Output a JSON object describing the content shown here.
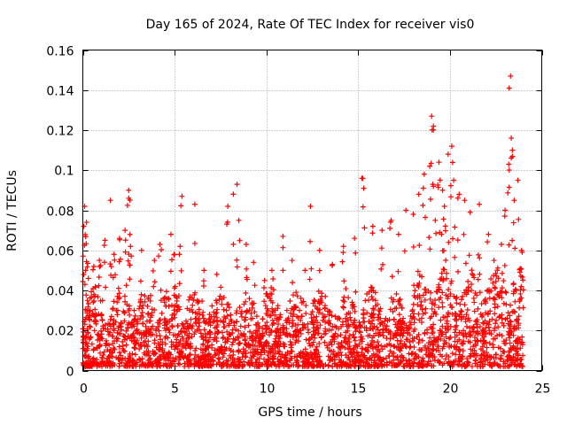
{
  "chart_data": {
    "type": "scatter",
    "title": "Day 165 of 2024, Rate Of TEC Index for receiver vis0",
    "xlabel": "GPS time / hours",
    "ylabel": "ROTI / TECUs",
    "xlim": [
      0,
      25
    ],
    "ylim": [
      0,
      0.16
    ],
    "xticks": [
      "0",
      "5",
      "10",
      "15",
      "20",
      "25"
    ],
    "xtick_values": [
      0,
      5,
      10,
      15,
      20,
      25
    ],
    "yticks": [
      "0",
      "0.02",
      "0.04",
      "0.06",
      "0.08",
      "0.1",
      "0.12",
      "0.14",
      "0.16"
    ],
    "ytick_values": [
      0,
      0.02,
      0.04,
      0.06,
      0.08,
      0.1,
      0.12,
      0.14,
      0.16
    ],
    "grid": true,
    "marker": "+",
    "color": "#ff0000",
    "series": [
      {
        "name": "ROTI",
        "x": [
          0.05,
          0.1,
          0.2,
          0.15,
          0.3,
          0.25,
          0.6,
          0.9,
          1.2,
          1.5,
          1.7,
          2.0,
          2.3,
          2.5,
          2.5,
          2.6,
          3.2,
          3.9,
          4.2,
          4.8,
          5.0,
          5.3,
          5.4,
          6.1,
          6.6,
          7.3,
          7.9,
          8.2,
          8.4,
          8.5,
          8.9,
          9.3,
          9.9,
          10.3,
          10.9,
          11.4,
          12.1,
          12.4,
          12.9,
          13.6,
          14.2,
          14.8,
          15.2,
          15.3,
          15.8,
          16.3,
          16.8,
          17.2,
          17.6,
          18.0,
          18.3,
          18.6,
          18.9,
          19.0,
          19.1,
          19.2,
          19.4,
          19.6,
          19.7,
          19.9,
          20.1,
          20.2,
          20.5,
          20.8,
          21.1,
          21.6,
          22.1,
          22.4,
          22.8,
          23.0,
          23.2,
          23.3,
          23.4,
          23.5,
          23.7,
          23.9,
          0.4,
          1.0,
          2.8,
          4.5,
          6.9,
          9.6,
          11.8,
          13.2,
          16.5,
          18.4,
          21.9,
          23.6,
          0.8,
          3.5,
          5.7,
          7.6,
          10.6,
          12.7,
          14.5,
          17.4,
          20.9,
          22.6
        ],
        "y": [
          0.072,
          0.082,
          0.074,
          0.05,
          0.046,
          0.035,
          0.052,
          0.055,
          0.065,
          0.085,
          0.058,
          0.066,
          0.07,
          0.09,
          0.086,
          0.062,
          0.06,
          0.055,
          0.063,
          0.068,
          0.058,
          0.062,
          0.087,
          0.083,
          0.05,
          0.048,
          0.082,
          0.088,
          0.093,
          0.075,
          0.063,
          0.054,
          0.045,
          0.05,
          0.067,
          0.055,
          0.05,
          0.082,
          0.06,
          0.053,
          0.062,
          0.066,
          0.096,
          0.091,
          0.072,
          0.07,
          0.075,
          0.068,
          0.08,
          0.078,
          0.088,
          0.098,
          0.102,
          0.127,
          0.122,
          0.075,
          0.104,
          0.09,
          0.082,
          0.108,
          0.112,
          0.095,
          0.088,
          0.085,
          0.079,
          0.083,
          0.068,
          0.055,
          0.063,
          0.08,
          0.103,
          0.147,
          0.11,
          0.085,
          0.095,
          0.06,
          0.03,
          0.028,
          0.03,
          0.025,
          0.028,
          0.022,
          0.03,
          0.027,
          0.026,
          0.032,
          0.035,
          0.04,
          0.018,
          0.02,
          0.022,
          0.019,
          0.021,
          0.02,
          0.022,
          0.024,
          0.028,
          0.032
        ],
        "baseline_min": 0.002,
        "baseline_typical_max": 0.04
      }
    ]
  }
}
